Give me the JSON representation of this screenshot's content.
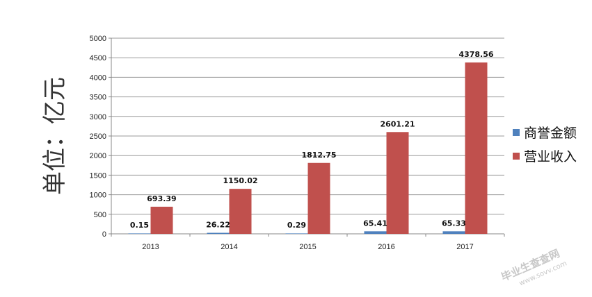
{
  "chart_data": {
    "type": "bar",
    "categories": [
      "2013",
      "2014",
      "2015",
      "2016",
      "2017"
    ],
    "series": [
      {
        "name": "商誉金额",
        "values": [
          0.15,
          26.22,
          0.29,
          65.41,
          65.33
        ],
        "labels": [
          "0.15",
          "26.22",
          "0.29",
          "65.41",
          "65.33"
        ],
        "color": "#4f81bd"
      },
      {
        "name": "营业收入",
        "values": [
          693.39,
          1150.02,
          1812.75,
          2601.21,
          4378.56
        ],
        "labels": [
          "693.39",
          "1150.02",
          "1812.75",
          "2601.21",
          "4378.56"
        ],
        "color": "#c0504d"
      }
    ],
    "ylabel": "单位：亿元",
    "xlabel": "",
    "ylim": [
      0,
      5000
    ],
    "yticks": [
      "0",
      "500",
      "1000",
      "1500",
      "2000",
      "2500",
      "3000",
      "3500",
      "4000",
      "4500",
      "5000"
    ],
    "grid": true,
    "legend": "right"
  },
  "watermark": {
    "line1": "毕业生查查网",
    "line2": "www.sovv.com"
  }
}
